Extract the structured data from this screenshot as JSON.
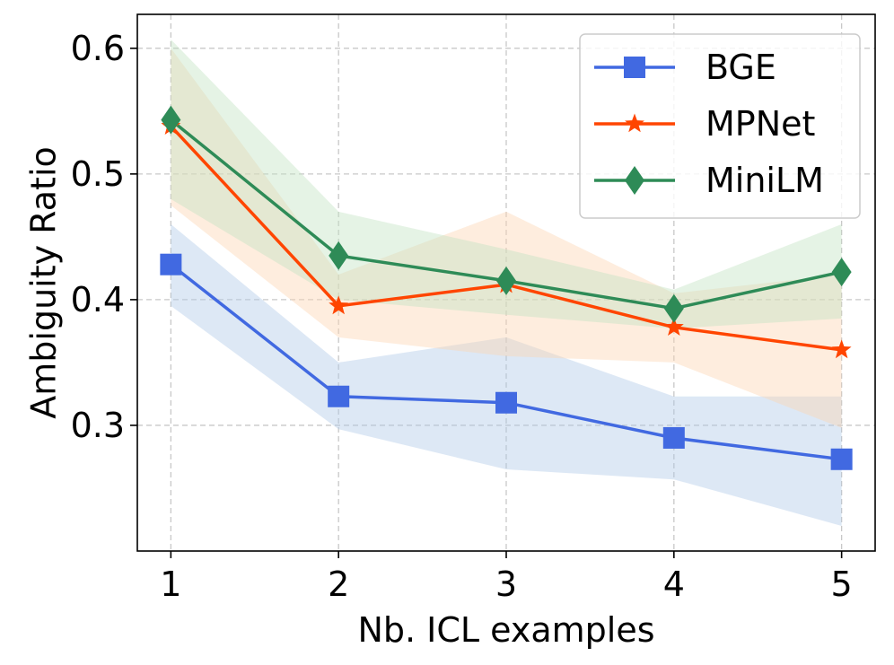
{
  "chart_data": {
    "type": "line",
    "xlabel": "Nb. ICL examples",
    "ylabel": "Ambiguity Ratio",
    "x": [
      1,
      2,
      3,
      4,
      5
    ],
    "xlim": [
      0.8,
      5.2
    ],
    "ylim": [
      0.2,
      0.627
    ],
    "xticks": [
      1,
      2,
      3,
      4,
      5
    ],
    "yticks": [
      0.3,
      0.4,
      0.5,
      0.6
    ],
    "ytick_labels": [
      "0.3",
      "0.4",
      "0.5",
      "0.6"
    ],
    "grid": true,
    "legend_position": "top-right",
    "series": [
      {
        "name": "BGE",
        "color": "#4169e1",
        "band_color": "#aec8e6",
        "marker": "square",
        "values": [
          0.428,
          0.323,
          0.318,
          0.29,
          0.273
        ],
        "lower": [
          0.395,
          0.297,
          0.265,
          0.257,
          0.22
        ],
        "upper": [
          0.46,
          0.35,
          0.37,
          0.323,
          0.323
        ]
      },
      {
        "name": "MPNet",
        "color": "#ff4500",
        "band_color": "#fdd4b0",
        "marker": "star",
        "values": [
          0.538,
          0.395,
          0.412,
          0.378,
          0.36
        ],
        "lower": [
          0.475,
          0.37,
          0.355,
          0.35,
          0.298
        ],
        "upper": [
          0.6,
          0.42,
          0.47,
          0.405,
          0.42
        ]
      },
      {
        "name": "MiniLM",
        "color": "#2e8b57",
        "band_color": "#c2e3c2",
        "marker": "diamond",
        "values": [
          0.543,
          0.435,
          0.415,
          0.393,
          0.422
        ],
        "lower": [
          0.48,
          0.4,
          0.388,
          0.377,
          0.385
        ],
        "upper": [
          0.607,
          0.47,
          0.44,
          0.408,
          0.46
        ]
      }
    ]
  }
}
